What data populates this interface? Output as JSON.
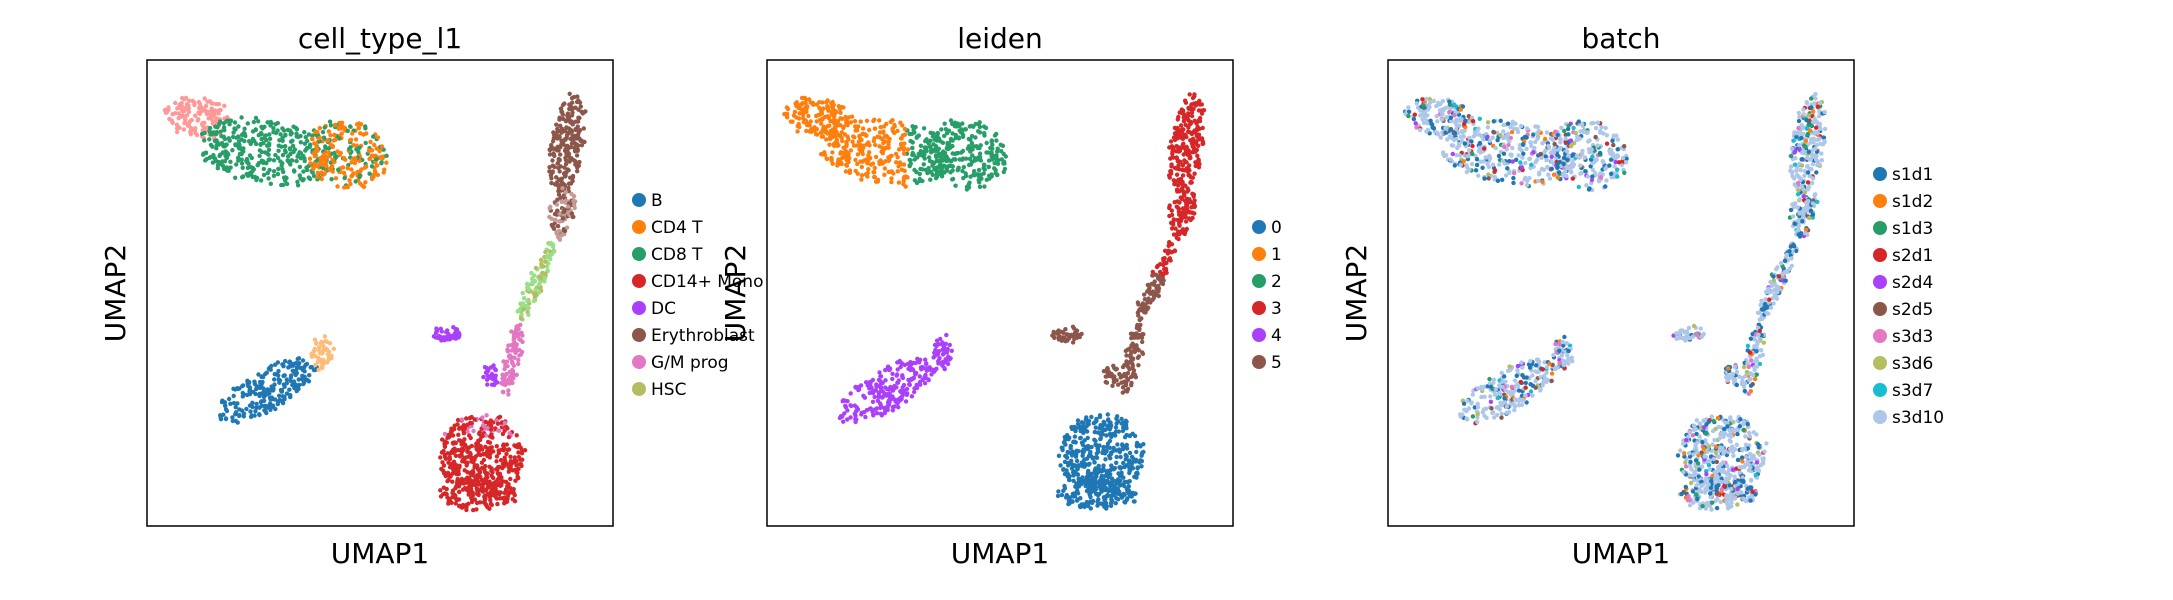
{
  "chart_data": [
    {
      "type": "scatter",
      "title": "cell_type_l1",
      "xlabel": "UMAP1",
      "ylabel": "UMAP2",
      "ticks": "none",
      "legend_position": "right",
      "legend": [
        {
          "label": "B",
          "color": "#1f77b4"
        },
        {
          "label": "CD4 T",
          "color": "#ff7f0e"
        },
        {
          "label": "CD8 T",
          "color": "#279e68"
        },
        {
          "label": "CD14+ Mono",
          "color": "#d62728"
        },
        {
          "label": "DC",
          "color": "#aa40fc"
        },
        {
          "label": "Erythroblast",
          "color": "#8c564b"
        },
        {
          "label": "G/M prog",
          "color": "#e377c2"
        },
        {
          "label": "HSC",
          "color": "#b5bd61"
        }
      ],
      "clusters": [
        {
          "label": "G/M prog",
          "extra_color": "#ff9896",
          "color": "#ff9896",
          "region": "top-left tip of upper island"
        },
        {
          "label": "CD8 T",
          "color": "#279e68",
          "region": "upper island, center"
        },
        {
          "label": "CD4 T",
          "color": "#ff7f0e",
          "region": "upper island, right"
        },
        {
          "label": "B",
          "color": "#1f77b4",
          "region": "lower-left island"
        },
        {
          "label": "CD4 T",
          "color": "#ffbb78",
          "region": "lower-left island, top"
        },
        {
          "label": "Erythroblast",
          "color": "#8c564b",
          "region": "right stalk, top"
        },
        {
          "label": "HSC",
          "color": "#98df8a",
          "region": "right stalk, middle"
        },
        {
          "label": "G/M prog",
          "color": "#e377c2",
          "region": "right stalk, lower"
        },
        {
          "label": "DC",
          "color": "#aa40fc",
          "region": "right stalk, left branch"
        },
        {
          "label": "CD14+ Mono",
          "color": "#d62728",
          "region": "bottom-right blob"
        }
      ]
    },
    {
      "type": "scatter",
      "title": "leiden",
      "xlabel": "UMAP1",
      "ylabel": "UMAP2",
      "ticks": "none",
      "legend_position": "right",
      "legend": [
        {
          "label": "0",
          "color": "#1f77b4"
        },
        {
          "label": "1",
          "color": "#ff7f0e"
        },
        {
          "label": "2",
          "color": "#279e68"
        },
        {
          "label": "3",
          "color": "#d62728"
        },
        {
          "label": "4",
          "color": "#aa40fc"
        },
        {
          "label": "5",
          "color": "#8c564b"
        }
      ]
    },
    {
      "type": "scatter",
      "title": "batch",
      "xlabel": "UMAP1",
      "ylabel": "UMAP2",
      "ticks": "none",
      "legend_position": "right",
      "legend": [
        {
          "label": "s1d1",
          "color": "#1f77b4"
        },
        {
          "label": "s1d2",
          "color": "#ff7f0e"
        },
        {
          "label": "s1d3",
          "color": "#279e68"
        },
        {
          "label": "s2d1",
          "color": "#d62728"
        },
        {
          "label": "s2d4",
          "color": "#aa40fc"
        },
        {
          "label": "s2d5",
          "color": "#8c564b"
        },
        {
          "label": "s3d3",
          "color": "#e377c2"
        },
        {
          "label": "s3d6",
          "color": "#b5bd61"
        },
        {
          "label": "s3d7",
          "color": "#17becf"
        },
        {
          "label": "s3d10",
          "color": "#aec7e8"
        }
      ]
    }
  ]
}
